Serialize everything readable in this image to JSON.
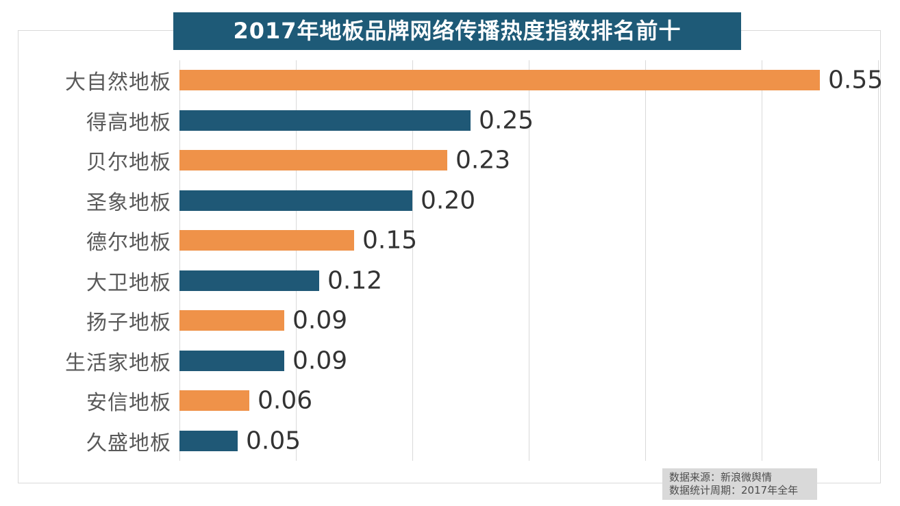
{
  "title": "2017年地板品牌网络传播热度指数排名前十",
  "source_box": {
    "line1": "数据来源：新浪微舆情",
    "line2": "数据统计周期：2017年全年"
  },
  "colors": {
    "bar_orange": "#EF9249",
    "bar_blue": "#1F5876",
    "title_bg": "#1E5A77",
    "gridline": "#D9D9D9",
    "category_label": "#595959",
    "value_label": "#333333",
    "source_bg": "#D9D9D9"
  },
  "chart_data": {
    "type": "bar",
    "orientation": "horizontal",
    "title": "2017年地板品牌网络传播热度指数排名前十",
    "categories": [
      "大自然地板",
      "得高地板",
      "贝尔地板",
      "圣象地板",
      "德尔地板",
      "大卫地板",
      "扬子地板",
      "生活家地板",
      "安信地板",
      "久盛地板"
    ],
    "values": [
      0.55,
      0.25,
      0.23,
      0.2,
      0.15,
      0.12,
      0.09,
      0.09,
      0.06,
      0.05
    ],
    "value_labels": [
      "0.55",
      "0.25",
      "0.23",
      "0.20",
      "0.15",
      "0.12",
      "0.09",
      "0.09",
      "0.06",
      "0.05"
    ],
    "bar_colors": [
      "#EF9249",
      "#1F5876"
    ],
    "xlabel": "",
    "ylabel": "",
    "xlim": [
      0,
      0.6
    ],
    "gridline_interval": 0.1,
    "grid": true,
    "legend": false,
    "annotations": [
      "数据来源：新浪微舆情",
      "数据统计周期：2017年全年"
    ]
  }
}
